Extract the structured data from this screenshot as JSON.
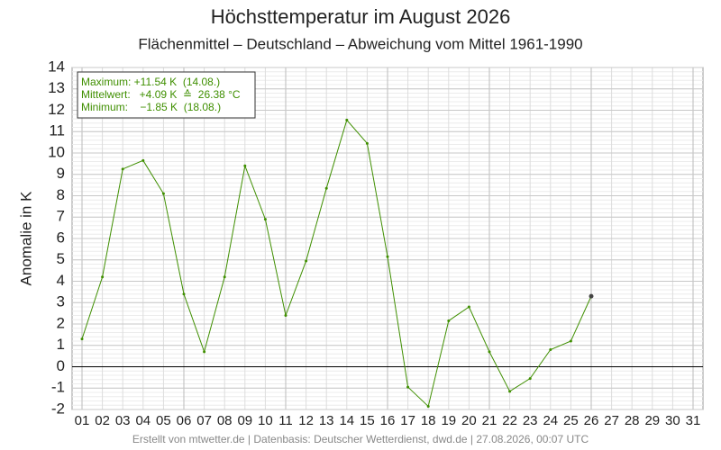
{
  "chart_data": {
    "type": "line",
    "title": "Höchsttemperatur im August 2026",
    "subtitle": "Flächenmittel – Deutschland – Abweichung vom Mittel 1961-1990",
    "y_label": "Anomalie in K",
    "categories": [
      "01",
      "02",
      "03",
      "04",
      "05",
      "06",
      "07",
      "08",
      "09",
      "10",
      "11",
      "12",
      "13",
      "14",
      "15",
      "16",
      "17",
      "18",
      "19",
      "20",
      "21",
      "22",
      "23",
      "24",
      "25",
      "26",
      "27",
      "28",
      "29",
      "30",
      "31"
    ],
    "series": [
      {
        "name": "Anomalie",
        "color": "#3f8f00",
        "values": [
          1.3,
          4.2,
          9.25,
          9.65,
          8.1,
          3.4,
          0.7,
          4.2,
          9.4,
          6.9,
          2.4,
          4.95,
          8.35,
          11.54,
          10.45,
          5.15,
          -0.95,
          -1.85,
          2.15,
          2.8,
          0.7,
          -1.15,
          -0.55,
          0.8,
          1.2,
          3.3,
          null,
          null,
          null,
          null,
          null
        ]
      }
    ],
    "ylim": [
      -2,
      14
    ],
    "yticks": [
      -2,
      -1,
      0,
      1,
      2,
      3,
      4,
      5,
      6,
      7,
      8,
      9,
      10,
      11,
      12,
      13,
      14
    ],
    "grid": true,
    "annotations": [
      "Maximum: +11.54 K  (14.08.)",
      "Mittelwert:   +4.09 K  ≙  26.38 °C",
      "Minimum:    −1.85 K  (18.08.)"
    ],
    "footer": "Erstellt von mtwetter.de | Datenbasis: Deutscher Wetterdienst, dwd.de | 27.08.2026, 00:07 UTC"
  }
}
